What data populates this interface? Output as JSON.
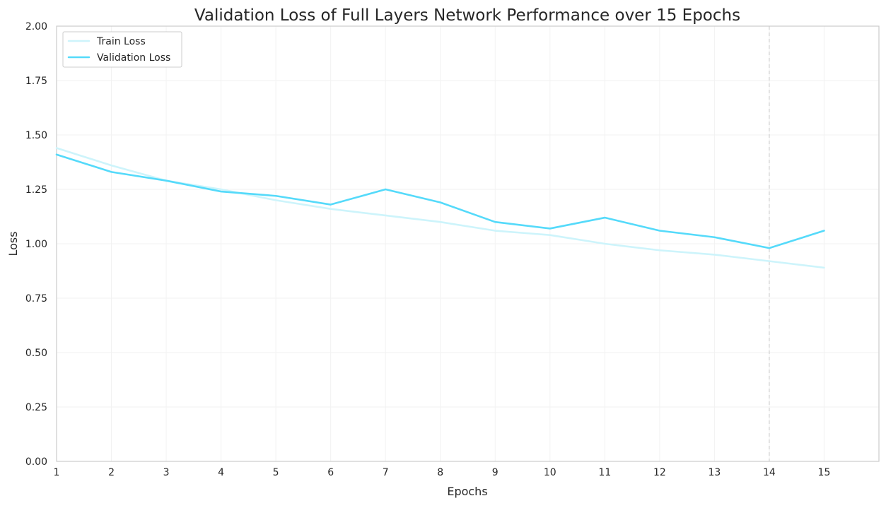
{
  "chart_data": {
    "type": "line",
    "title": "Validation Loss of Full Layers Network Performance over 15 Epochs",
    "xlabel": "Epochs",
    "ylabel": "Loss",
    "x": [
      1,
      2,
      3,
      4,
      5,
      6,
      7,
      8,
      9,
      10,
      11,
      12,
      13,
      14,
      15
    ],
    "xlim": [
      1,
      16
    ],
    "ylim": [
      0,
      2
    ],
    "xticks": [
      "1",
      "2",
      "3",
      "4",
      "5",
      "6",
      "7",
      "8",
      "9",
      "10",
      "11",
      "12",
      "13",
      "14",
      "15"
    ],
    "yticks": [
      "0.00",
      "0.25",
      "0.50",
      "0.75",
      "1.00",
      "1.25",
      "1.50",
      "1.75",
      "2.00"
    ],
    "grid": true,
    "legend_position": "top-left",
    "vertical_marker_x": 14,
    "series": [
      {
        "name": "Train Loss",
        "color": "#cdf4fb",
        "values": [
          1.44,
          1.36,
          1.29,
          1.25,
          1.2,
          1.16,
          1.13,
          1.1,
          1.06,
          1.04,
          1.0,
          0.97,
          0.95,
          0.92,
          0.89
        ]
      },
      {
        "name": "Validation Loss",
        "color": "#55dafa",
        "values": [
          1.41,
          1.33,
          1.29,
          1.24,
          1.22,
          1.18,
          1.25,
          1.19,
          1.1,
          1.07,
          1.12,
          1.06,
          1.03,
          0.98,
          1.06
        ]
      }
    ]
  }
}
